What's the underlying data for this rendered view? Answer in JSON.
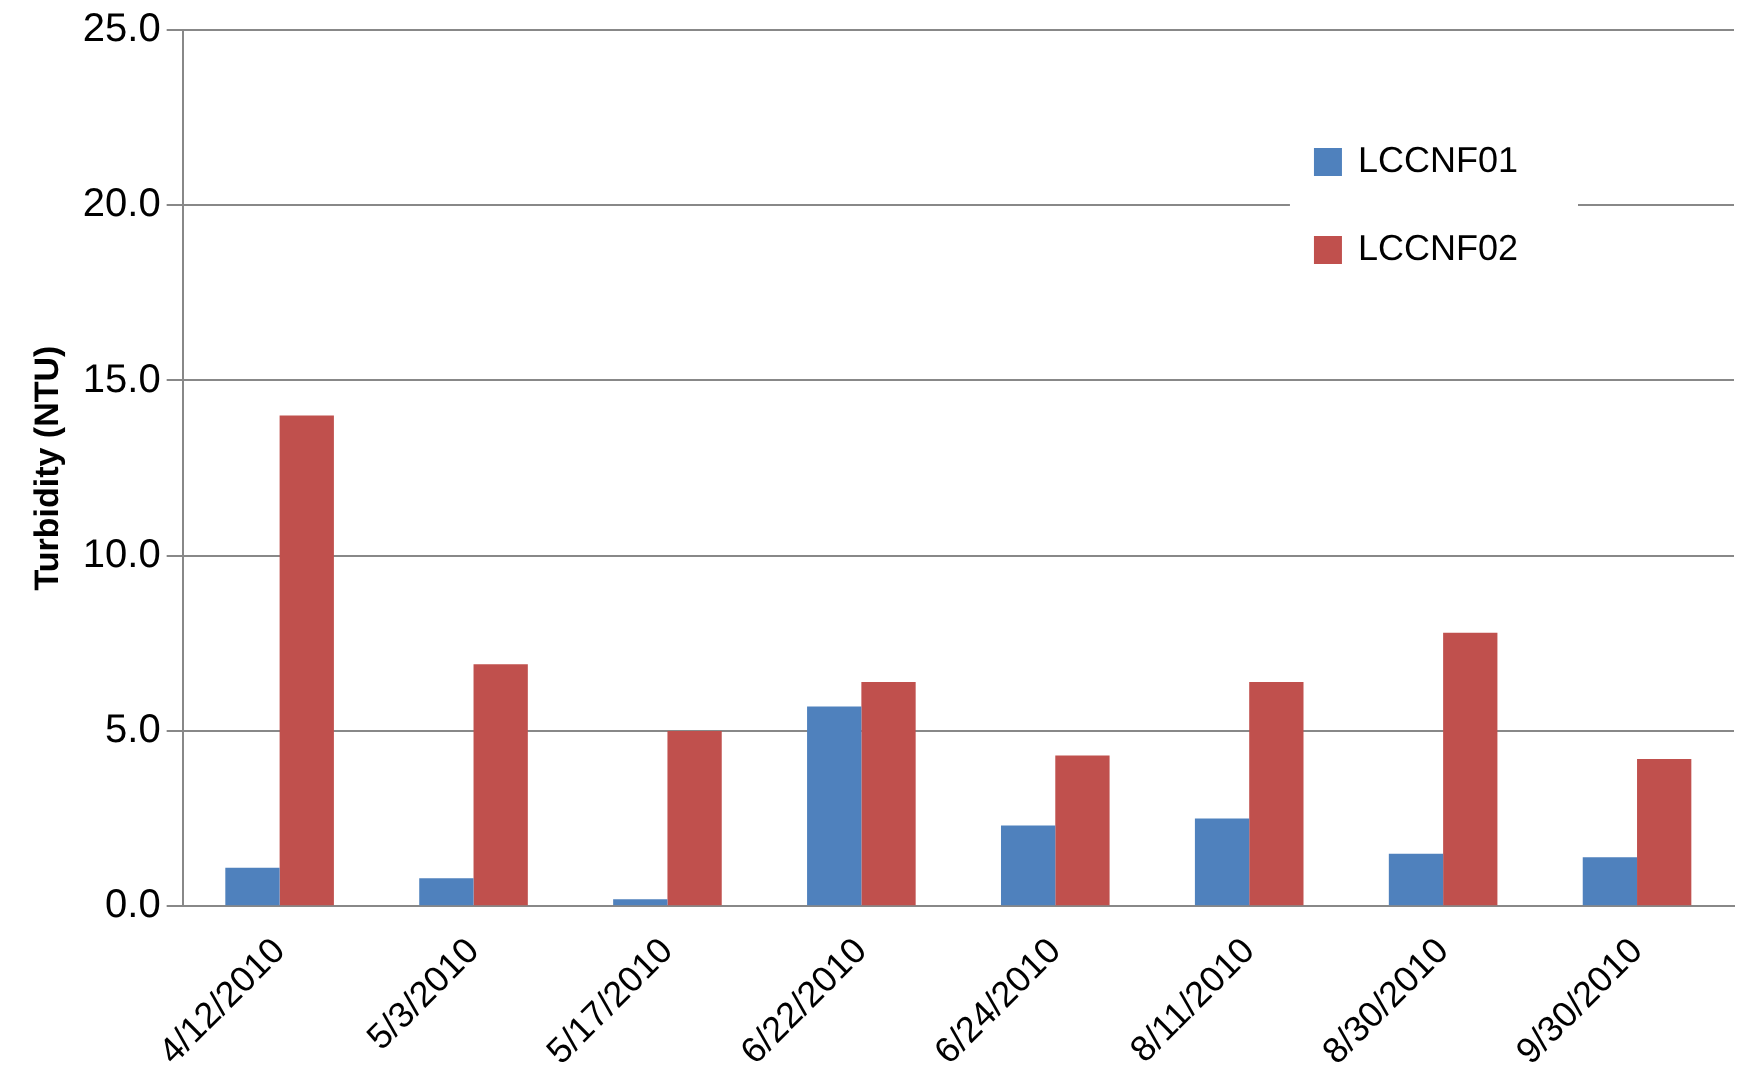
{
  "chart_data": {
    "type": "bar",
    "ylabel": "Turbidity (NTU)",
    "categories": [
      "4/12/2010",
      "5/3/2010",
      "5/17/2010",
      "6/22/2010",
      "6/24/2010",
      "8/11/2010",
      "8/30/2010",
      "9/30/2010"
    ],
    "series": [
      {
        "name": "LCCNF01",
        "color": "#4f81bd",
        "values": [
          1.1,
          0.8,
          0.2,
          5.7,
          2.3,
          2.5,
          1.5,
          1.4
        ]
      },
      {
        "name": "LCCNF02",
        "color": "#c0504d",
        "values": [
          14.0,
          6.9,
          5.0,
          6.4,
          4.3,
          6.4,
          7.8,
          4.2
        ]
      }
    ],
    "ylim": [
      0,
      25
    ],
    "yticks": [
      {
        "value": 0,
        "label": "0.0"
      },
      {
        "value": 5,
        "label": "5.0"
      },
      {
        "value": 10,
        "label": "10.0"
      },
      {
        "value": 15,
        "label": "15.0"
      },
      {
        "value": 20,
        "label": "20.0"
      },
      {
        "value": 25,
        "label": "25.0"
      }
    ],
    "grid": "y",
    "legend": "top right"
  }
}
